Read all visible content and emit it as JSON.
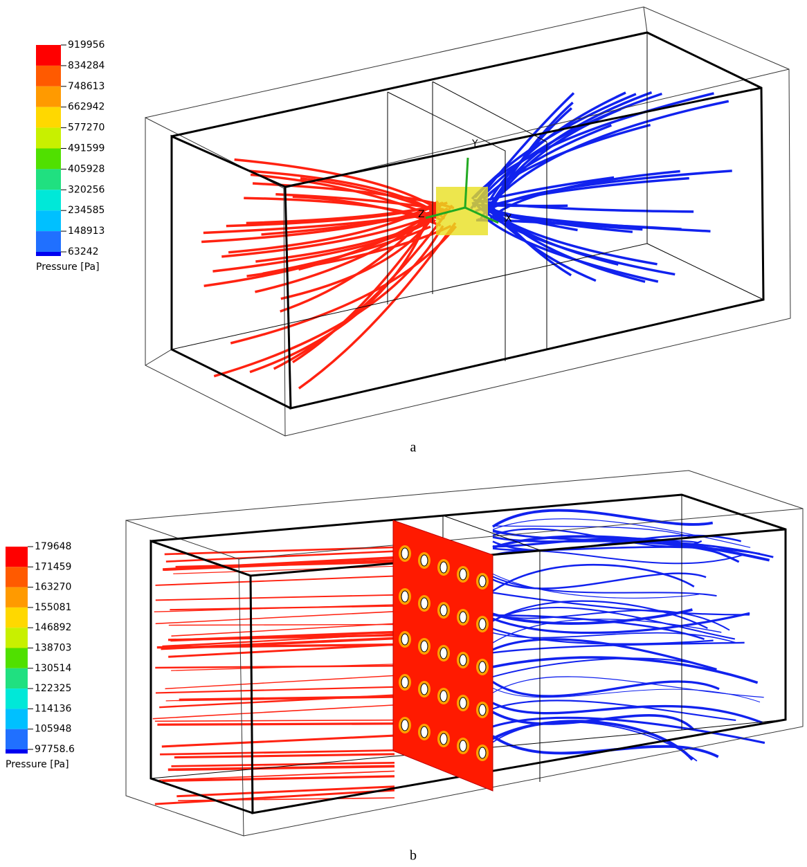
{
  "figure_a": {
    "legend": {
      "ticks": [
        919956,
        834284,
        748613,
        662942,
        577270,
        491599,
        405928,
        320256,
        234585,
        148913,
        63242
      ],
      "title": "Pressure [Pa]"
    },
    "axes": [
      "Y",
      "Z",
      "X"
    ],
    "caption": "a"
  },
  "figure_b": {
    "legend": {
      "ticks": [
        179648,
        171459,
        163270,
        155081,
        146892,
        138703,
        130514,
        122325,
        114136,
        105948,
        97758.6
      ],
      "title": "Pressure [Pa]"
    },
    "caption": "b"
  }
}
